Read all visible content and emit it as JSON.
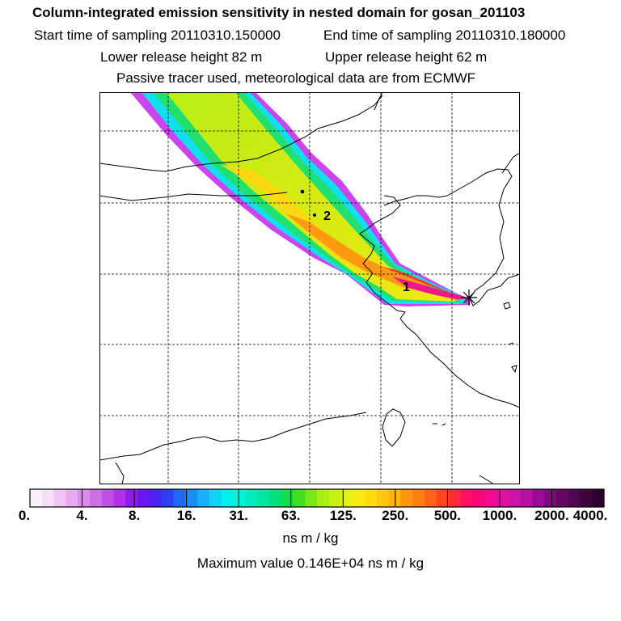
{
  "header": {
    "title": "Column-integrated emission sensitivity in nested domain for gosan_201103",
    "start": "Start time of sampling 20110310.150000",
    "end": "End time of sampling 20110310.180000",
    "lower": "Lower release height   82 m",
    "upper": "Upper release height   62 m",
    "note": "Passive tracer used, meteorological data are from ECMWF"
  },
  "map": {
    "labels": {
      "one": "1",
      "two": "2"
    },
    "colors": {
      "frame": "#000000",
      "grid": "#000000",
      "coast": "#000000"
    }
  },
  "colorbar": {
    "ticks": [
      "0.",
      "4.",
      "8.",
      "16.",
      "31.",
      "63.",
      "125.",
      "250.",
      "500.",
      "1000.",
      "2000.",
      "4000."
    ],
    "colors": [
      "#fdf0fd",
      "#f8dcf8",
      "#f2c4f2",
      "#eaaaf0",
      "#d98be8",
      "#cc6fe6",
      "#bf50e6",
      "#b030e8",
      "#8c1cf0",
      "#6a18f2",
      "#4c24f2",
      "#2f40f4",
      "#1e6af4",
      "#1a8ef6",
      "#18b0f6",
      "#12d2f4",
      "#00f0f0",
      "#00f2d8",
      "#00ecbc",
      "#00e6a0",
      "#00e080",
      "#10e050",
      "#40e020",
      "#78e818",
      "#a8ee10",
      "#c8f010",
      "#e4f20e",
      "#f6ea10",
      "#ffdc10",
      "#ffc80c",
      "#ffb208",
      "#ff9808",
      "#ff7e10",
      "#ff6218",
      "#ff4424",
      "#ff2a38",
      "#ff1060",
      "#f8087c",
      "#f00c90",
      "#e010a0",
      "#cc14a8",
      "#b410a4",
      "#9a0c98",
      "#80087e",
      "#680664",
      "#520550",
      "#3e043c",
      "#2c032c"
    ],
    "units": "ns m / kg",
    "max_label": "Maximum value  0.146E+04 ns m / kg"
  }
}
